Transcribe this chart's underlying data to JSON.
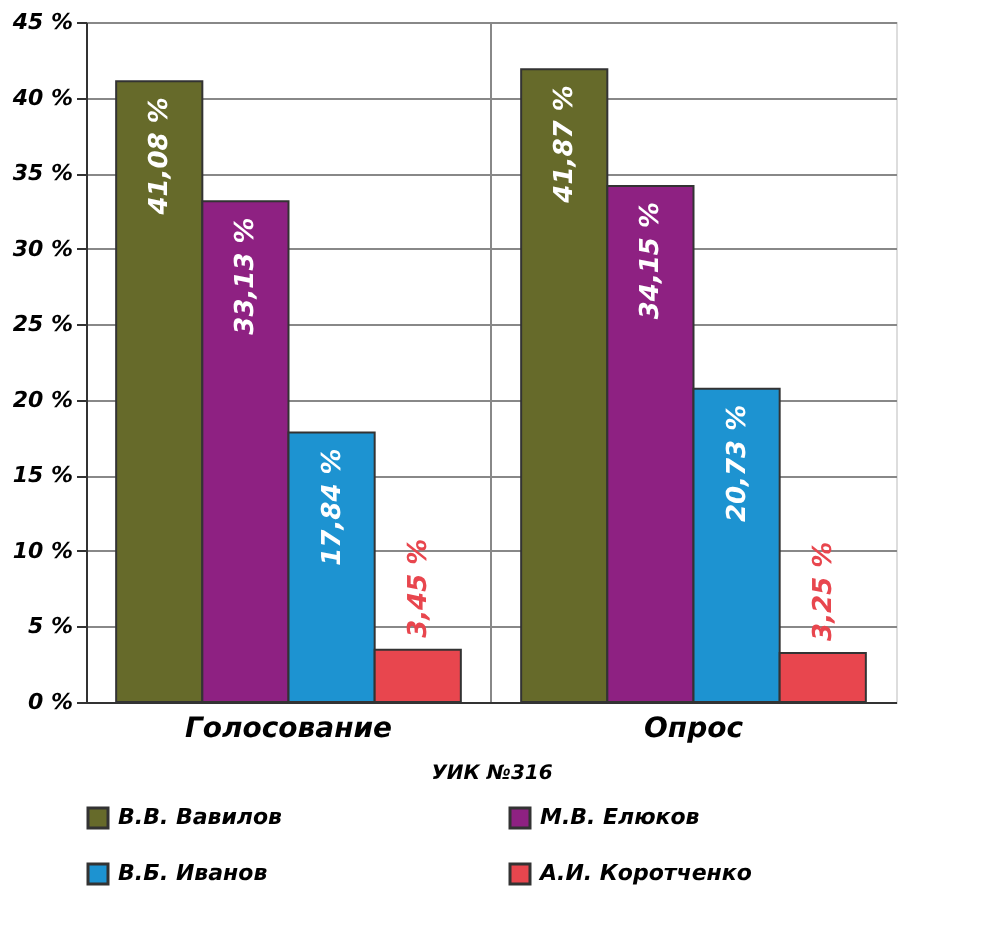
{
  "chart_data": {
    "type": "bar",
    "xlabel": "УИК №316",
    "categories": [
      "Голосование",
      "Опрос"
    ],
    "series": [
      {
        "name": "В.В. Вавилов",
        "color": "#666a2a",
        "values": [
          41.08,
          41.87
        ],
        "value_labels": [
          "41,08 %",
          "41,87 %"
        ]
      },
      {
        "name": "М.В. Елюков",
        "color": "#8e2182",
        "values": [
          33.13,
          34.15
        ],
        "value_labels": [
          "33,13 %",
          "34,15 %"
        ]
      },
      {
        "name": "В.Б. Иванов",
        "color": "#1d93d1",
        "values": [
          17.84,
          20.73
        ],
        "value_labels": [
          "17,84 %",
          "20,73 %"
        ]
      },
      {
        "name": "А.И. Коротченко",
        "color": "#e8464e",
        "values": [
          3.45,
          3.25
        ],
        "value_labels": [
          "3,45 %",
          "3,25 %"
        ]
      }
    ],
    "ylim": [
      0,
      45
    ],
    "yticks": [
      {
        "value": 0,
        "label": "0 %"
      },
      {
        "value": 5,
        "label": "5 %"
      },
      {
        "value": 10,
        "label": "10 %"
      },
      {
        "value": 15,
        "label": "15 %"
      },
      {
        "value": 20,
        "label": "20 %"
      },
      {
        "value": 25,
        "label": "25 %"
      },
      {
        "value": 30,
        "label": "30 %"
      },
      {
        "value": 35,
        "label": "35 %"
      },
      {
        "value": 40,
        "label": "40 %"
      },
      {
        "value": 45,
        "label": "45 %"
      }
    ],
    "grid": true,
    "legend": "bottom"
  }
}
